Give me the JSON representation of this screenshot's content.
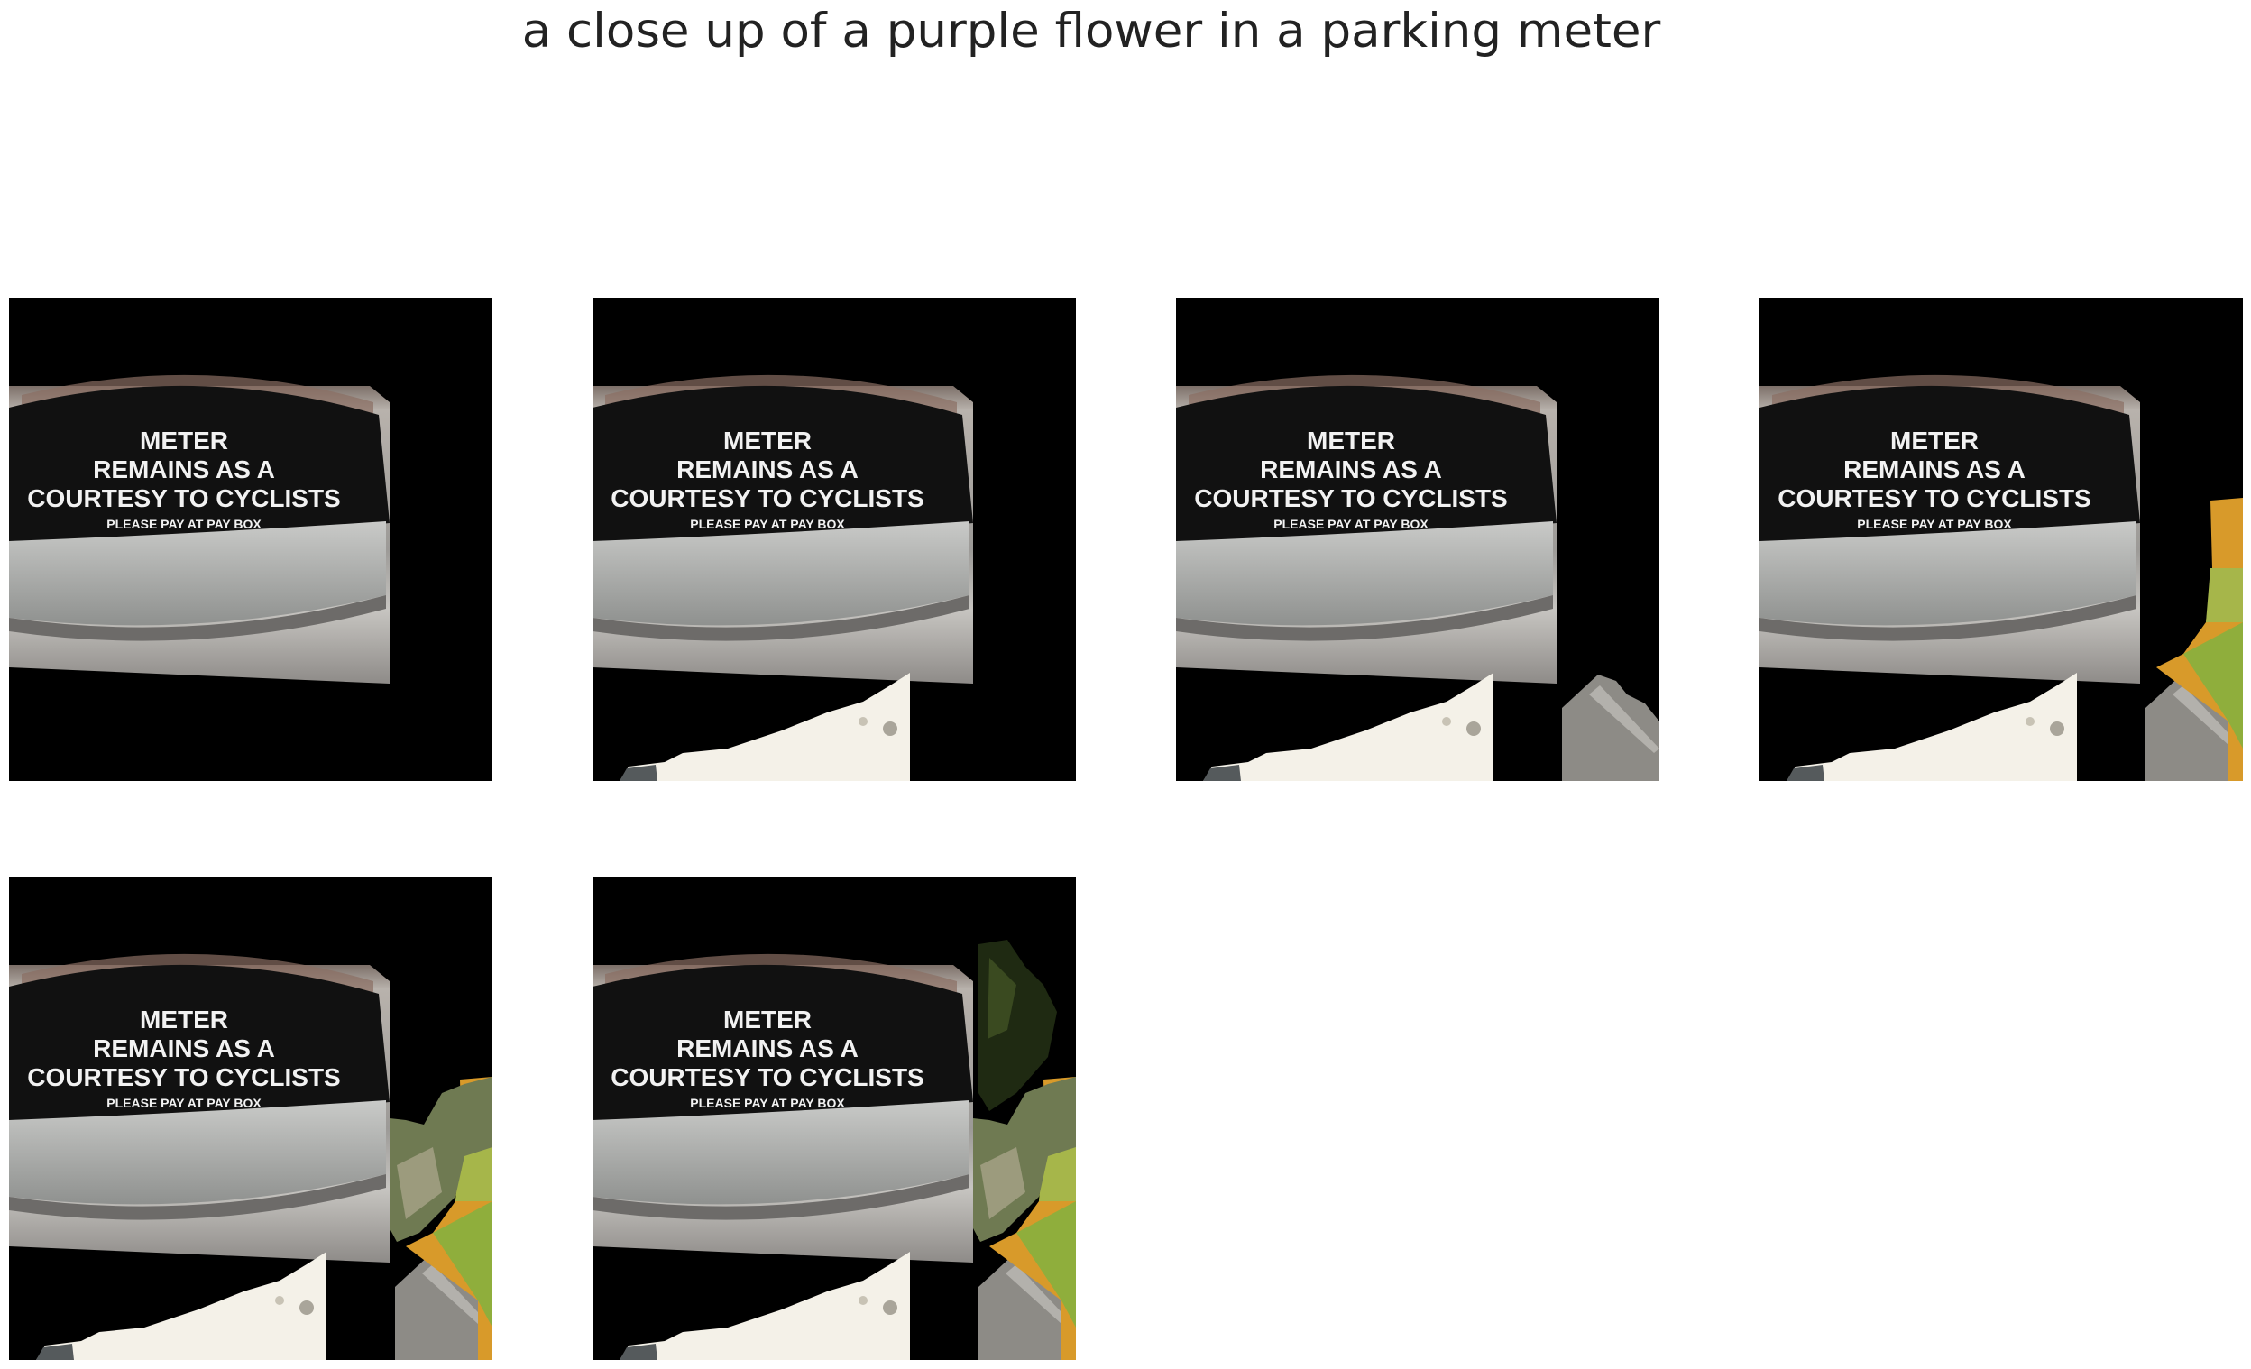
{
  "title": "a close up of a purple flower in a parking meter",
  "sign": {
    "line1": "METER",
    "line2": "REMAINS AS A",
    "line3": "COURTESY TO CYCLISTS",
    "line4": "PLEASE PAY AT PAY BOX"
  },
  "panels": [
    {
      "id": 1,
      "segments": [
        "meter"
      ]
    },
    {
      "id": 2,
      "segments": [
        "meter",
        "snow"
      ]
    },
    {
      "id": 3,
      "segments": [
        "meter",
        "snow",
        "pavement"
      ]
    },
    {
      "id": 4,
      "segments": [
        "meter",
        "snow",
        "pavement",
        "flower-right"
      ]
    },
    {
      "id": 5,
      "segments": [
        "meter",
        "snow",
        "pavement",
        "flower-right",
        "foliage"
      ]
    },
    {
      "id": 6,
      "segments": [
        "meter",
        "snow",
        "pavement",
        "flower-right",
        "foliage",
        "leaves-top"
      ]
    }
  ],
  "colors": {
    "background": "#000000",
    "metal": "#9a9894",
    "sign": "#111111",
    "snow": "#f4f1e8",
    "pavement": "#8d8b86",
    "flower": "#d89a2a",
    "leaf": "#8fae3c"
  }
}
